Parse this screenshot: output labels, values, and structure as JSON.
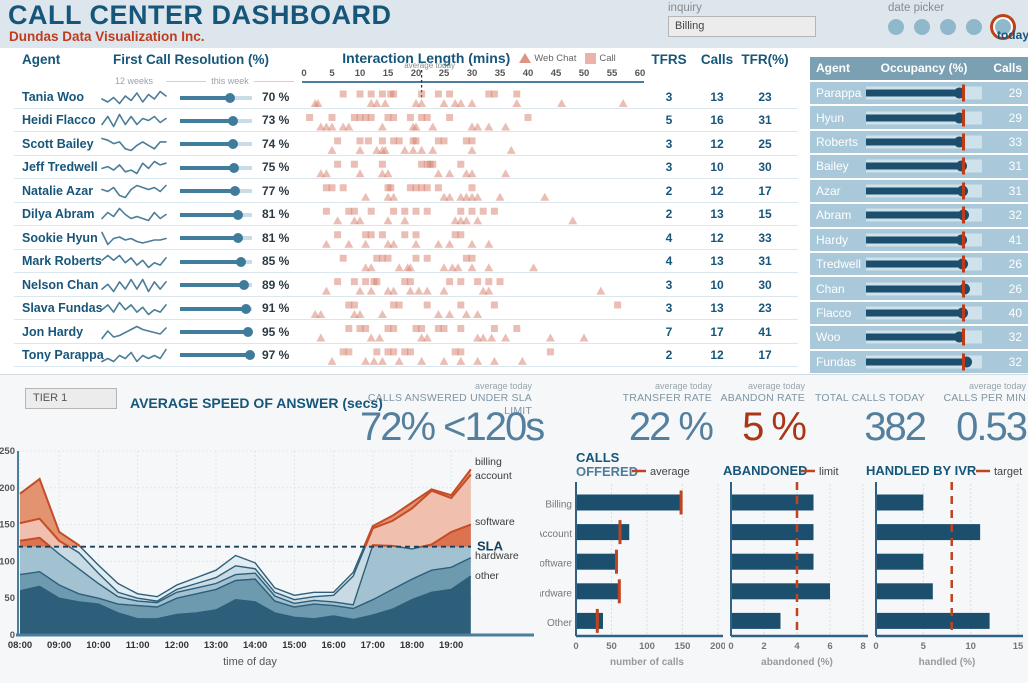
{
  "header": {
    "title": "CALL CENTER DASHBOARD",
    "subtitle": "Dundas Data Visualization Inc.",
    "inquiry": {
      "label": "inquiry",
      "value": "Billing"
    },
    "date_picker": {
      "label": "date picker",
      "dot_count": 5,
      "today_label": "today"
    }
  },
  "colors": {
    "dark_blue": "#15567a",
    "steel_blue": "#54809e",
    "bar_blue": "#1c4f6e",
    "accent_red": "#c2441f",
    "salmon": "#d98270",
    "row_blue": "#a9c8d9",
    "panel_header": "#7ba0b2",
    "sla_navy": "#173f5e",
    "spark_blue": "#4a7d98"
  },
  "agent_table": {
    "headers": {
      "agent": "Agent",
      "fcr": "First Call Resolution (%)",
      "spark": "12 weeks",
      "bullet": "this week",
      "tfrs": "TFRS",
      "calls": "Calls",
      "tfr_pct": "TFR(%)"
    },
    "rows": [
      {
        "name": "Tania Woo",
        "fcr": 70,
        "tfrs": 3,
        "calls": 13,
        "tfr_pct": 23,
        "spark": [
          68,
          66,
          69,
          65,
          70,
          67,
          72,
          66,
          71,
          68,
          73,
          70
        ],
        "interactions": {
          "call": [
            7,
            10,
            12,
            14,
            15.5,
            16,
            21,
            24,
            26,
            33,
            34,
            38
          ],
          "webchat": [
            2,
            2.5,
            12,
            13,
            14.5,
            20,
            21,
            25,
            27,
            28,
            30,
            38,
            46,
            57
          ]
        }
      },
      {
        "name": "Heidi Flacco",
        "fcr": 73,
        "tfrs": 5,
        "calls": 16,
        "tfr_pct": 31,
        "spark": [
          70,
          74,
          69,
          75,
          70,
          74,
          70,
          73,
          72,
          74,
          71,
          73
        ],
        "interactions": {
          "call": [
            1,
            5,
            9,
            10,
            11,
            12,
            15,
            16,
            19,
            21,
            22,
            26,
            40
          ],
          "webchat": [
            3,
            4,
            5,
            7,
            8,
            14,
            19.5,
            20,
            23,
            30,
            31,
            33,
            36
          ]
        }
      },
      {
        "name": "Scott Bailey",
        "fcr": 74,
        "tfrs": 3,
        "calls": 12,
        "tfr_pct": 25,
        "spark": [
          76,
          75,
          73,
          74,
          70,
          69,
          72,
          74,
          72,
          70,
          74,
          74
        ],
        "interactions": {
          "call": [
            6,
            10,
            11.5,
            14,
            16,
            17,
            19.5,
            20,
            24,
            25,
            29,
            30
          ],
          "webchat": [
            5,
            10,
            13,
            14,
            14.5,
            18,
            19.5,
            21,
            23,
            30,
            37
          ]
        }
      },
      {
        "name": "Jeff Tredwell",
        "fcr": 75,
        "tfrs": 3,
        "calls": 10,
        "tfr_pct": 30,
        "spark": [
          72,
          73,
          71,
          74,
          70,
          71,
          69,
          75,
          72,
          76,
          74,
          75
        ],
        "interactions": {
          "call": [
            6,
            9,
            14,
            21,
            22,
            22.5,
            23,
            28
          ],
          "webchat": [
            3,
            4,
            10,
            14,
            15,
            24,
            26,
            29,
            30,
            36
          ]
        }
      },
      {
        "name": "Natalie Azar",
        "fcr": 77,
        "tfrs": 2,
        "calls": 12,
        "tfr_pct": 17,
        "spark": [
          75,
          74,
          76,
          72,
          71,
          75,
          77,
          76,
          75,
          76,
          74,
          77
        ],
        "interactions": {
          "call": [
            4,
            5,
            7,
            15,
            15.5,
            19,
            20,
            21,
            22,
            24,
            30
          ],
          "webchat": [
            11,
            15,
            16,
            25,
            26,
            28,
            29,
            30,
            31,
            35,
            43
          ]
        }
      },
      {
        "name": "Dilya Abram",
        "fcr": 81,
        "tfrs": 2,
        "calls": 13,
        "tfr_pct": 15,
        "spark": [
          79,
          82,
          80,
          84,
          81,
          79,
          80,
          79,
          78,
          82,
          79,
          81
        ],
        "interactions": {
          "call": [
            4,
            8,
            9,
            12,
            16,
            18,
            20,
            22,
            28,
            30,
            32,
            34
          ],
          "webchat": [
            6,
            9,
            10,
            15,
            18,
            27,
            28,
            29,
            31,
            48
          ]
        }
      },
      {
        "name": "Sookie Hyun",
        "fcr": 81,
        "tfrs": 4,
        "calls": 12,
        "tfr_pct": 33,
        "spark": [
          85,
          77,
          81,
          82,
          80,
          81,
          79,
          78,
          79,
          80,
          80,
          81
        ],
        "interactions": {
          "call": [
            6,
            11,
            12,
            14,
            18,
            20,
            27,
            28
          ],
          "webchat": [
            4,
            8,
            11,
            15,
            16,
            20,
            24,
            26,
            30,
            33
          ]
        }
      },
      {
        "name": "Mark Roberts",
        "fcr": 85,
        "tfrs": 4,
        "calls": 13,
        "tfr_pct": 31,
        "spark": [
          84,
          86,
          84,
          86,
          83,
          85,
          82,
          84,
          81,
          83,
          82,
          85
        ],
        "interactions": {
          "call": [
            7,
            13,
            14,
            15,
            20,
            22,
            29,
            30
          ],
          "webchat": [
            11,
            12,
            17,
            18.5,
            19,
            25,
            26.5,
            27.5,
            30,
            33,
            41
          ]
        }
      },
      {
        "name": "Nelson Chan",
        "fcr": 89,
        "tfrs": 3,
        "calls": 10,
        "tfr_pct": 30,
        "spark": [
          86,
          88,
          85,
          89,
          86,
          90,
          86,
          90,
          85,
          89,
          86,
          89
        ],
        "interactions": {
          "call": [
            6,
            9,
            11,
            12.5,
            13,
            18,
            19,
            26,
            28,
            31,
            33,
            35
          ],
          "webchat": [
            4,
            10,
            12,
            15,
            16,
            19,
            20.5,
            22,
            25,
            32,
            33,
            53
          ]
        }
      },
      {
        "name": "Slava Fundas",
        "fcr": 91,
        "tfrs": 3,
        "calls": 13,
        "tfr_pct": 23,
        "spark": [
          89,
          91,
          88,
          92,
          89,
          91,
          88,
          90,
          87,
          89,
          88,
          91
        ],
        "interactions": {
          "call": [
            8,
            9,
            16,
            17,
            22,
            28,
            34,
            56
          ],
          "webchat": [
            2,
            3,
            9,
            10,
            14,
            24,
            26,
            29,
            31
          ]
        }
      },
      {
        "name": "Jon Hardy",
        "fcr": 95,
        "tfrs": 7,
        "calls": 17,
        "tfr_pct": 41,
        "spark": [
          88,
          93,
          89,
          90,
          92,
          94,
          96,
          94,
          93,
          92,
          91,
          95
        ],
        "interactions": {
          "call": [
            8,
            10,
            11,
            15,
            16,
            20,
            21,
            24,
            25,
            28,
            34,
            38
          ],
          "webchat": [
            3,
            12,
            13.5,
            21,
            22,
            31,
            32,
            33.5,
            36,
            44,
            50
          ]
        }
      },
      {
        "name": "Tony Parappa",
        "fcr": 97,
        "tfrs": 2,
        "calls": 12,
        "tfr_pct": 17,
        "spark": [
          93,
          94,
          93,
          95,
          94,
          96,
          93,
          95,
          94,
          95,
          94,
          97
        ],
        "interactions": {
          "call": [
            7,
            8,
            13,
            15,
            16,
            18,
            19,
            27,
            28,
            44
          ],
          "webchat": [
            5,
            11,
            12.5,
            14,
            17,
            21,
            25,
            28,
            31,
            34,
            39
          ]
        }
      }
    ]
  },
  "interaction": {
    "title": "Interaction Length (mins)",
    "legend": [
      {
        "marker": "triangle",
        "label": "Web Chat"
      },
      {
        "marker": "square",
        "label": "Call"
      }
    ],
    "axis": {
      "min": 0,
      "max": 60,
      "step": 5
    },
    "average": {
      "label": "average today",
      "value": 21
    }
  },
  "occupancy_panel": {
    "headers": {
      "agent": "Agent",
      "occupancy": "Occupancy (%)",
      "calls": "Calls"
    },
    "target_pct": 83,
    "rows": [
      {
        "name": "Parappa",
        "occupancy": 84,
        "calls": 29
      },
      {
        "name": "Hyun",
        "occupancy": 84,
        "calls": 29
      },
      {
        "name": "Roberts",
        "occupancy": 84,
        "calls": 33
      },
      {
        "name": "Bailey",
        "occupancy": 85,
        "calls": 31
      },
      {
        "name": "Azar",
        "occupancy": 86,
        "calls": 31
      },
      {
        "name": "Abram",
        "occupancy": 87,
        "calls": 32
      },
      {
        "name": "Hardy",
        "occupancy": 85,
        "calls": 41
      },
      {
        "name": "Tredwell",
        "occupancy": 86,
        "calls": 26
      },
      {
        "name": "Chan",
        "occupancy": 88,
        "calls": 26
      },
      {
        "name": "Flacco",
        "occupancy": 86,
        "calls": 40
      },
      {
        "name": "Woo",
        "occupancy": 84,
        "calls": 32
      },
      {
        "name": "Fundas",
        "occupancy": 90,
        "calls": 32
      }
    ]
  },
  "filters": {
    "tier": "TIER 1"
  },
  "kpis": [
    {
      "sub": "average today",
      "label": "CALLS ANSWERED UNDER SLA LIMIT",
      "value": "72% <120s",
      "alert": false
    },
    {
      "sub": "average today",
      "label": "TRANSFER RATE",
      "value": "22 %",
      "alert": false
    },
    {
      "sub": "average today",
      "label": "ABANDON RATE",
      "value": "5 %",
      "alert": true
    },
    {
      "sub": "",
      "label": "TOTAL CALLS TODAY",
      "value": "382",
      "alert": false
    },
    {
      "sub": "average today",
      "label": "CALLS PER MIN",
      "value": "0.53",
      "alert": false
    }
  ],
  "chart_data": [
    {
      "id": "asa",
      "type": "area",
      "title": "AVERAGE SPEED OF ANSWER (secs)",
      "xlabel": "time of day",
      "ylim": [
        0,
        250
      ],
      "yticks": [
        0,
        50,
        100,
        150,
        200,
        250
      ],
      "x": [
        "08:00",
        "08:30",
        "09:00",
        "09:30",
        "10:00",
        "10:30",
        "11:00",
        "11:30",
        "12:00",
        "12:30",
        "13:00",
        "13:30",
        "14:00",
        "14:30",
        "15:00",
        "15:30",
        "16:00",
        "16:30",
        "17:00",
        "17:30",
        "18:00",
        "18:30",
        "19:00",
        "19:30"
      ],
      "sla": {
        "label": "SLA",
        "value": 120
      },
      "series": [
        {
          "name": "other",
          "cumulative": [
            60,
            66,
            50,
            45,
            42,
            30,
            22,
            22,
            28,
            30,
            34,
            48,
            45,
            30,
            24,
            22,
            26,
            21,
            27,
            35,
            48,
            58,
            62,
            80
          ]
        },
        {
          "name": "hardware",
          "cumulative": [
            82,
            86,
            68,
            56,
            50,
            42,
            40,
            38,
            50,
            56,
            62,
            74,
            76,
            46,
            38,
            42,
            40,
            36,
            48,
            62,
            76,
            88,
            92,
            105
          ]
        },
        {
          "name": "software",
          "cumulative": [
            128,
            132,
            110,
            90,
            70,
            52,
            46,
            44,
            58,
            64,
            70,
            82,
            84,
            53,
            43,
            47,
            45,
            41,
            122,
            121,
            117,
            123,
            140,
            150
          ]
        },
        {
          "name": "account",
          "cumulative": [
            152,
            158,
            128,
            112,
            84,
            58,
            50,
            46,
            62,
            70,
            78,
            94,
            90,
            58,
            48,
            52,
            54,
            80,
            145,
            155,
            172,
            196,
            186,
            218
          ]
        },
        {
          "name": "billing",
          "cumulative": [
            192,
            212,
            140,
            122,
            95,
            70,
            56,
            52,
            68,
            78,
            88,
            108,
            98,
            64,
            54,
            58,
            58,
            85,
            148,
            162,
            180,
            198,
            190,
            225
          ]
        }
      ]
    },
    {
      "id": "calls_offered",
      "type": "bar",
      "title_lines": [
        "CALLS",
        "OFFERED"
      ],
      "legend": {
        "label": "average",
        "style": "solid"
      },
      "xlabel": "number of calls",
      "xlim": [
        0,
        200
      ],
      "xticks": [
        0,
        50,
        100,
        150,
        200
      ],
      "categories": [
        "Billing",
        "Account",
        "Software",
        "Hardware",
        "Other"
      ],
      "values": [
        150,
        75,
        58,
        60,
        38
      ],
      "averages": [
        148,
        62,
        57,
        61,
        30
      ]
    },
    {
      "id": "abandoned",
      "type": "bar",
      "title_lines": [
        "ABANDONED"
      ],
      "legend": {
        "label": "limit",
        "style": "dashed"
      },
      "xlabel": "abandoned (%)",
      "xlim": [
        0,
        8
      ],
      "xticks": [
        0,
        2,
        4,
        6,
        8
      ],
      "categories": [
        "Billing",
        "Account",
        "Software",
        "Hardware",
        "Other"
      ],
      "values": [
        5,
        5,
        5,
        6,
        3
      ],
      "reference_line": 4
    },
    {
      "id": "handled_by_ivr",
      "type": "bar",
      "title_lines": [
        "HANDLED BY IVR"
      ],
      "legend": {
        "label": "target",
        "style": "dashed"
      },
      "xlabel": "handled (%)",
      "xlim": [
        0,
        15
      ],
      "xticks": [
        0,
        5,
        10,
        15
      ],
      "categories": [
        "Billing",
        "Account",
        "Software",
        "Hardware",
        "Other"
      ],
      "values": [
        5,
        11,
        5,
        6,
        12
      ],
      "reference_line": 8
    }
  ]
}
